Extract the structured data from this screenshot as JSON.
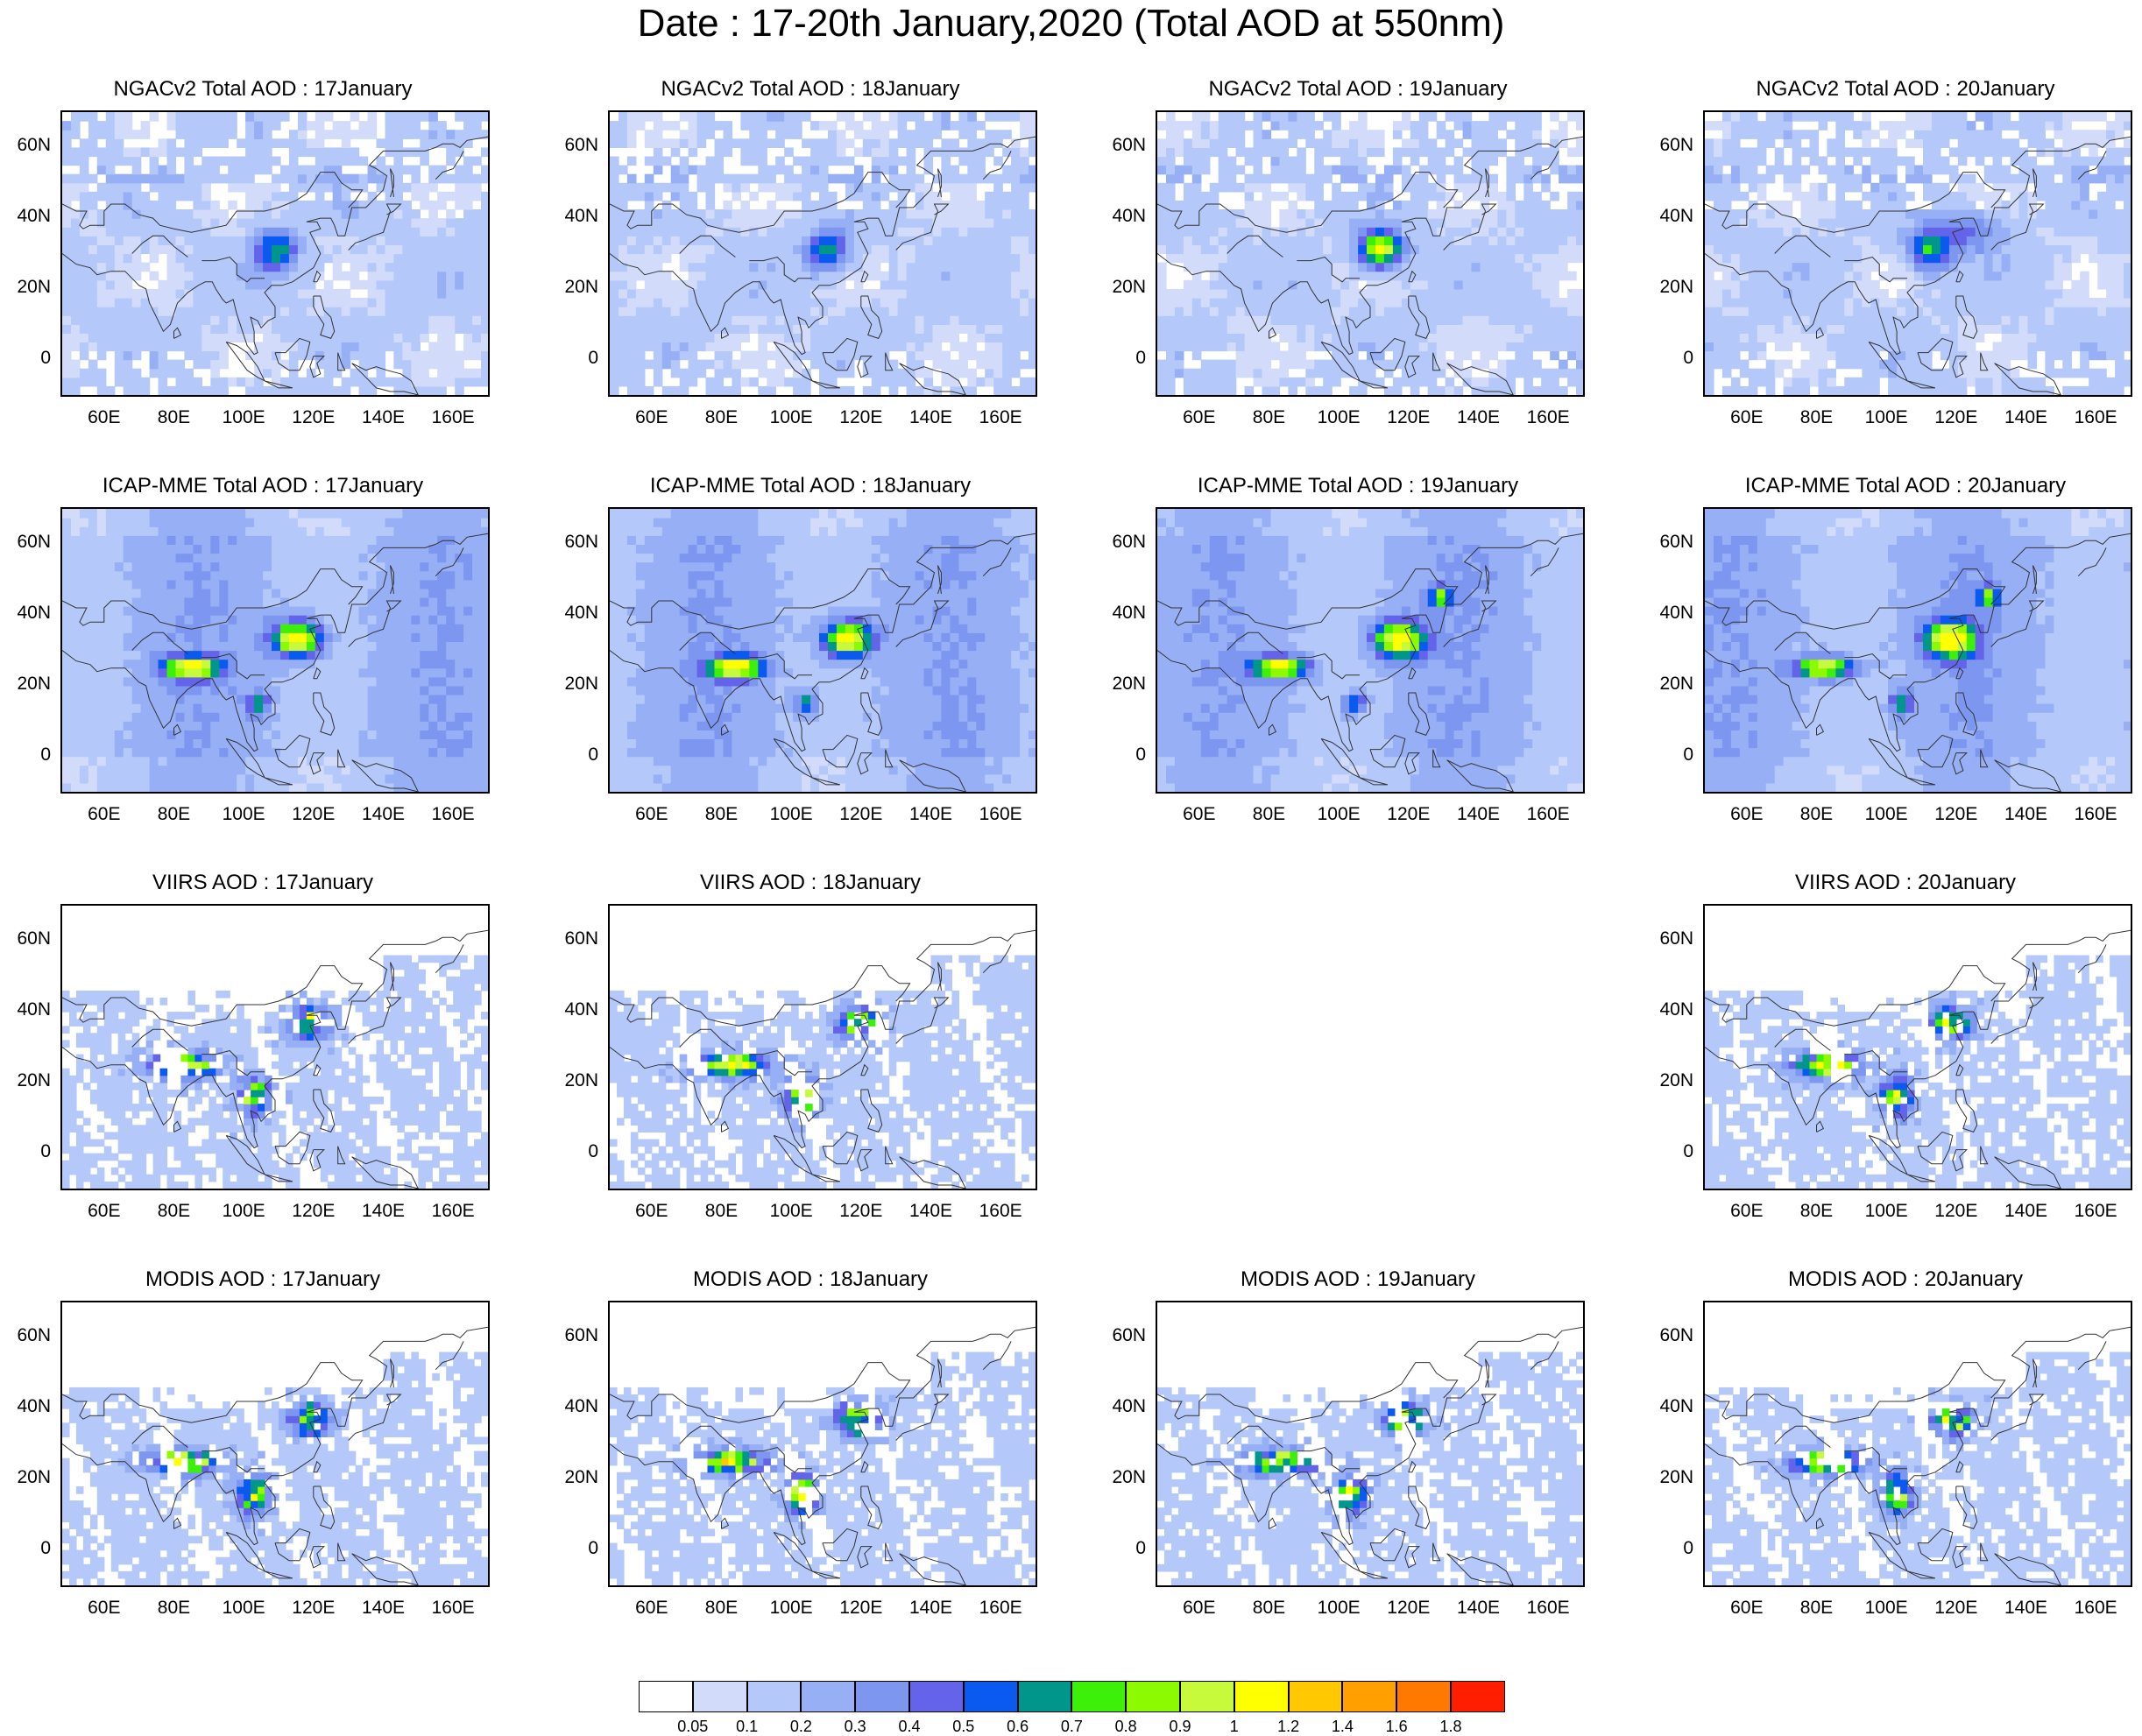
{
  "title": "Date : 17-20th January,2020 (Total AOD at 550nm)",
  "axes": {
    "x_ticks": [
      "60E",
      "80E",
      "100E",
      "120E",
      "140E",
      "160E"
    ],
    "y_ticks": [
      "60N",
      "40N",
      "20N",
      "0"
    ],
    "lon_range": [
      48,
      170
    ],
    "lat_range": [
      -10,
      70
    ]
  },
  "panels": [
    {
      "title": "NGACv2 Total AOD : 17January",
      "dataset": "ngac",
      "date": "17January",
      "row": 0,
      "col": 0
    },
    {
      "title": "NGACv2 Total AOD : 18January",
      "dataset": "ngac",
      "date": "18January",
      "row": 0,
      "col": 1
    },
    {
      "title": "NGACv2 Total AOD : 19January",
      "dataset": "ngac",
      "date": "19January",
      "row": 0,
      "col": 2
    },
    {
      "title": "NGACv2 Total AOD : 20January",
      "dataset": "ngac",
      "date": "20January",
      "row": 0,
      "col": 3
    },
    {
      "title": "ICAP-MME Total AOD : 17January",
      "dataset": "icap",
      "date": "17January",
      "row": 1,
      "col": 0
    },
    {
      "title": "ICAP-MME Total AOD : 18January",
      "dataset": "icap",
      "date": "18January",
      "row": 1,
      "col": 1
    },
    {
      "title": "ICAP-MME Total AOD : 19January",
      "dataset": "icap",
      "date": "19January",
      "row": 1,
      "col": 2
    },
    {
      "title": "ICAP-MME Total AOD : 20January",
      "dataset": "icap",
      "date": "20January",
      "row": 1,
      "col": 3
    },
    {
      "title": "VIIRS AOD : 17January",
      "dataset": "viirs",
      "date": "17January",
      "row": 2,
      "col": 0
    },
    {
      "title": "VIIRS AOD : 18January",
      "dataset": "viirs",
      "date": "18January",
      "row": 2,
      "col": 1
    },
    {
      "title": "VIIRS AOD : 20January",
      "dataset": "viirs",
      "date": "20January",
      "row": 2,
      "col": 3
    },
    {
      "title": "MODIS AOD : 17January",
      "dataset": "modis",
      "date": "17January",
      "row": 3,
      "col": 0
    },
    {
      "title": "MODIS AOD : 18January",
      "dataset": "modis",
      "date": "18January",
      "row": 3,
      "col": 1
    },
    {
      "title": "MODIS AOD : 19January",
      "dataset": "modis",
      "date": "19January",
      "row": 3,
      "col": 2
    },
    {
      "title": "MODIS AOD : 20January",
      "dataset": "modis",
      "date": "20January",
      "row": 3,
      "col": 3
    }
  ],
  "legend": {
    "labels": [
      "0.05",
      "0.1",
      "0.2",
      "0.3",
      "0.4",
      "0.5",
      "0.6",
      "0.7",
      "0.8",
      "0.9",
      "1",
      "1.2",
      "1.4",
      "1.6",
      "1.8"
    ],
    "colors": [
      "#ffffff",
      "#d2dcfa",
      "#b4c8fa",
      "#96aff5",
      "#7d96f0",
      "#6464eb",
      "#0a5af0",
      "#00968c",
      "#3cf00a",
      "#8cfa00",
      "#c8fa3c",
      "#ffff00",
      "#ffc800",
      "#ffa000",
      "#ff7800",
      "#ff1e00"
    ]
  }
}
